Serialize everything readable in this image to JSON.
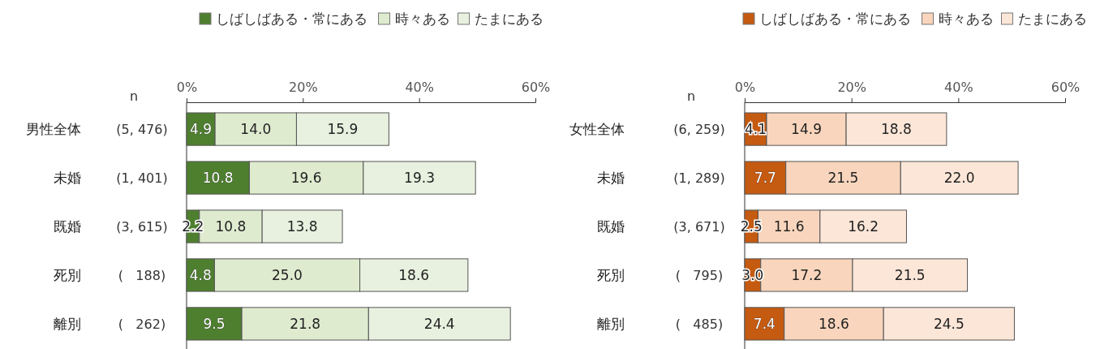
{
  "chart_data": [
    {
      "type": "bar",
      "orientation": "horizontal",
      "stacked": true,
      "legend": "top right",
      "grid": false,
      "categories": [
        "男性全体",
        "未婚",
        "既婚",
        "死別",
        "離別"
      ],
      "series": [
        {
          "name": "しばしばある・常にある",
          "color": "#4e7f2f",
          "values": [
            4.9,
            10.8,
            2.2,
            4.8,
            9.5
          ],
          "value_labels": [
            "4.9",
            "10.8",
            "2.2",
            "4.8",
            "9.5"
          ]
        },
        {
          "name": "時々ある",
          "color": "#deebcf",
          "values": [
            14.0,
            19.6,
            10.8,
            25.0,
            21.8
          ],
          "value_labels": [
            "14.0",
            "19.6",
            "10.8",
            "25.0",
            "21.8"
          ]
        },
        {
          "name": "たまにある",
          "color": "#e8f1df",
          "values": [
            15.9,
            19.3,
            13.8,
            18.6,
            24.4
          ],
          "value_labels": [
            "15.9",
            "19.3",
            "13.8",
            "18.6",
            "24.4"
          ]
        }
      ],
      "x2lim": [
        0,
        60
      ],
      "x2ticks": [
        {
          "value": 0,
          "label": "0%"
        },
        {
          "value": 20,
          "label": "20%"
        },
        {
          "value": 40,
          "label": "40%"
        },
        {
          "value": 60,
          "label": "60%"
        }
      ],
      "annotations": [
        "n",
        "(5, 476)",
        "(1, 401)",
        "(3, 615)",
        "(   188)",
        "(   262)"
      ]
    },
    {
      "type": "bar",
      "orientation": "horizontal",
      "stacked": true,
      "legend": "top right",
      "grid": false,
      "categories": [
        "女性全体",
        "未婚",
        "既婚",
        "死別",
        "離別"
      ],
      "series": [
        {
          "name": "しばしばある・常にある",
          "color": "#c55a11",
          "values": [
            4.1,
            7.7,
            2.5,
            3.0,
            7.4
          ],
          "value_labels": [
            "4.1",
            "7.7",
            "2.5",
            "3.0",
            "7.4"
          ]
        },
        {
          "name": "時々ある",
          "color": "#f8d5bc",
          "values": [
            14.9,
            21.5,
            11.6,
            17.2,
            18.6
          ],
          "value_labels": [
            "14.9",
            "21.5",
            "11.6",
            "17.2",
            "18.6"
          ]
        },
        {
          "name": "たまにある",
          "color": "#fce6d8",
          "values": [
            18.8,
            22.0,
            16.2,
            21.5,
            24.5
          ],
          "value_labels": [
            "18.8",
            "22.0",
            "16.2",
            "21.5",
            "24.5"
          ]
        }
      ],
      "x2lim": [
        0,
        60
      ],
      "x2ticks": [
        {
          "value": 0,
          "label": "0%"
        },
        {
          "value": 20,
          "label": "20%"
        },
        {
          "value": 40,
          "label": "40%"
        },
        {
          "value": 60,
          "label": "60%"
        }
      ],
      "annotations": [
        "n",
        "(6, 259)",
        "(1, 289)",
        "(3, 671)",
        "(   795)",
        "(   485)"
      ]
    }
  ]
}
